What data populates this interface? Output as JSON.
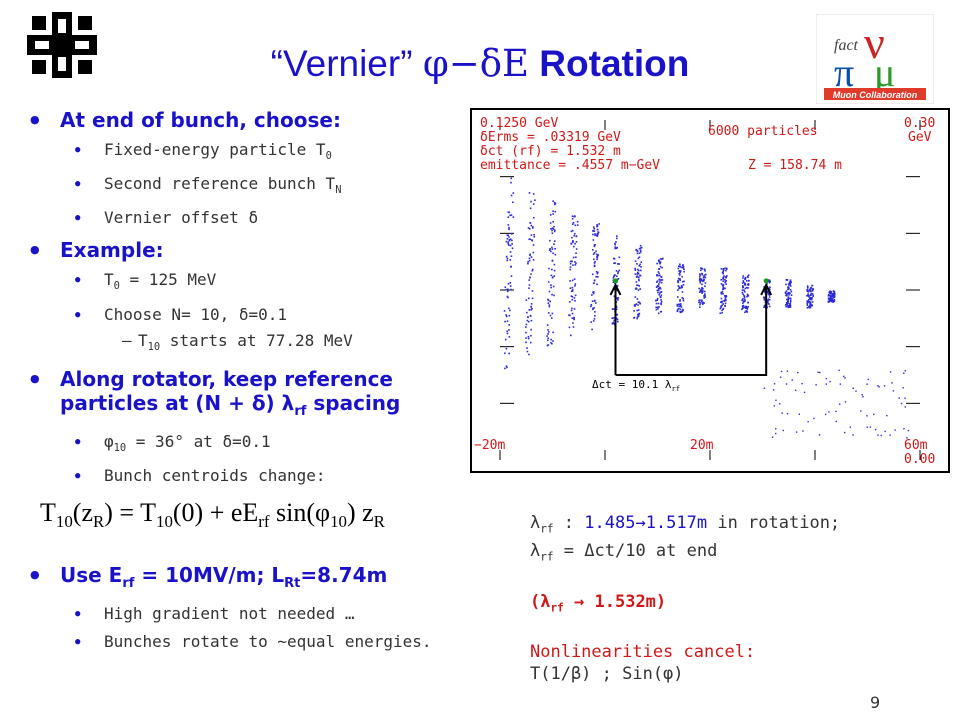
{
  "title": {
    "prefix": "“Vernier” ",
    "symbols": "φ−δE",
    "bold": " Rotation"
  },
  "left_logo": "fermilab-logo",
  "right_logo": {
    "text_fact": "fact",
    "text_collab": "Muon Collaboration"
  },
  "bullets": {
    "b1": "At end of bunch, choose:",
    "b1_items": [
      "Fixed-energy particle T",
      "Second reference bunch T",
      "Vernier offset δ"
    ],
    "b1_subs": [
      "0",
      "N"
    ],
    "b2": "Example:",
    "b2_items": [
      "T",
      " = 125 MeV",
      "Choose N= 10, δ=0.1"
    ],
    "b2_sub": "0",
    "b2_dash": {
      "pre": "T",
      "sub": "10",
      "post": " starts at 77.28 MeV"
    },
    "b3": "Along rotator, keep reference particles at  (N + δ) λ",
    "b3_sub": "rf",
    "b3_tail": " spacing",
    "b3_items": [
      "φ",
      " = 36° at δ=0.1",
      "Bunch centroids change:"
    ],
    "b3_phi_sub": "10",
    "b4": "Use E",
    "b4_sub1": "rf",
    "b4_mid": " = 10MV/m; L",
    "b4_sub2": "Rt",
    "b4_end": "=8.74m",
    "b4_items": [
      "High gradient not needed …",
      "Bunches rotate to ~equal energies."
    ]
  },
  "formula": {
    "lhs": "T",
    "lhs_sub": "10",
    "lhs_arg": "(z",
    "lhs_argsub": "R",
    "mid": ") = T",
    "mid_sub": "10",
    "mid2": "(0) + eE",
    "rf_sub": "rf",
    "sin": " sin(φ",
    "sin_sub": "10",
    "end": ") z",
    "end_sub": "R"
  },
  "plot": {
    "energy": "0.1250   GeV",
    "erms": "δErms = .03319   GeV",
    "dct": "δct (rf) =   1.532 m",
    "emittance": "emittance = .4557 m−GeV",
    "particles": "6000   particles",
    "z": "Z =   158.74  m",
    "ymax": "0.30",
    "yunit": "GeV",
    "xmin": "−20m",
    "xmid": "20m",
    "xmax": "60m",
    "ymin": "0.00",
    "annot": "Δct = 10.1 λ",
    "annot_sub": "rf"
  },
  "notes": {
    "n1a": "λ",
    "n1sub": "rf",
    "n1b": " : ",
    "n1c": "1.485→1.517m",
    "n1d": " in rotation;",
    "n2a": "λ",
    "n2sub": "rf",
    "n2b": " = Δct/10 at end",
    "n3a": "(λ",
    "n3sub": "rf",
    "n3b": " → 1.532m)",
    "n4": "Nonlinearities cancel:",
    "n5": "T(1/β)  ;   Sin(φ)"
  },
  "page_number": "9",
  "chart_data": {
    "type": "scatter",
    "title": "",
    "xlabel": "",
    "ylabel": "",
    "xlim": [
      -20,
      60
    ],
    "ylim": [
      0.0,
      0.3
    ],
    "x_ticks": [
      "−20m",
      "20m",
      "60m"
    ],
    "y_ticks": [
      "0.00",
      "0.30"
    ],
    "series": [
      {
        "name": "",
        "color": "#2a2ad8",
        "bunches": [
          {
            "x": -18.5,
            "ymin": 0.08,
            "ymax": 0.25
          },
          {
            "x": -14.4,
            "ymin": 0.09,
            "ymax": 0.24
          },
          {
            "x": -10.3,
            "ymin": 0.1,
            "ymax": 0.23
          },
          {
            "x": -6.2,
            "ymin": 0.11,
            "ymax": 0.22
          },
          {
            "x": -2.1,
            "ymin": 0.115,
            "ymax": 0.21
          },
          {
            "x": 2.0,
            "ymin": 0.12,
            "ymax": 0.2
          },
          {
            "x": 6.1,
            "ymin": 0.125,
            "ymax": 0.19
          },
          {
            "x": 10.2,
            "ymin": 0.13,
            "ymax": 0.18
          },
          {
            "x": 14.3,
            "ymin": 0.13,
            "ymax": 0.175
          },
          {
            "x": 18.4,
            "ymin": 0.135,
            "ymax": 0.17
          },
          {
            "x": 22.5,
            "ymin": 0.13,
            "ymax": 0.17
          },
          {
            "x": 26.6,
            "ymin": 0.13,
            "ymax": 0.165
          },
          {
            "x": 30.7,
            "ymin": 0.135,
            "ymax": 0.16
          },
          {
            "x": 34.8,
            "ymin": 0.135,
            "ymax": 0.16
          },
          {
            "x": 38.9,
            "ymin": 0.135,
            "ymax": 0.155
          },
          {
            "x": 43.0,
            "ymin": 0.14,
            "ymax": 0.15
          }
        ]
      }
    ],
    "annotations": [
      "Δct = 10.1 λrf"
    ]
  }
}
